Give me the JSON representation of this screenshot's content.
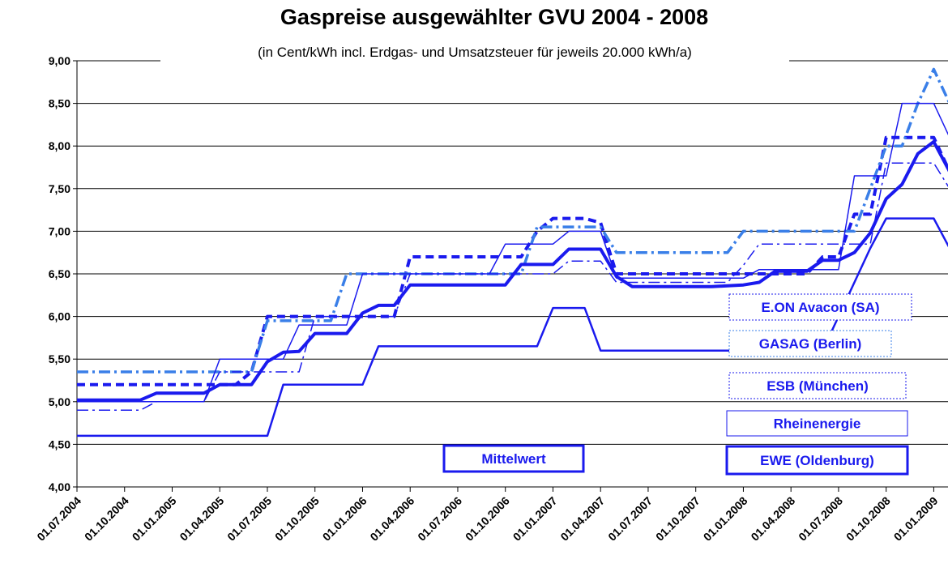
{
  "chart_data": {
    "type": "line",
    "title": "Gaspreise ausgewählter GVU 2004 - 2008",
    "subtitle": "(in Cent/kWh incl. Erdgas- und Umsatzsteuer für jeweils 20.000 kWh/a)",
    "categories": [
      "01.07.2004",
      null,
      null,
      "01.10.2004",
      null,
      null,
      "01.01.2005",
      null,
      null,
      "01.04.2005",
      null,
      null,
      "01.07.2005",
      null,
      null,
      "01.10.2005",
      null,
      null,
      "01.01.2006",
      null,
      null,
      "01.04.2006",
      null,
      null,
      "01.07.2006",
      null,
      null,
      "01.10.2006",
      null,
      null,
      "01.01.2007",
      null,
      null,
      "01.04.2007",
      null,
      null,
      "01.07.2007",
      null,
      null,
      "01.10.2007",
      null,
      null,
      "01.01.2008",
      null,
      null,
      "01.04.2008",
      null,
      null,
      "01.07.2008",
      null,
      null,
      "01.10.2008",
      null,
      null,
      "01.01.2009",
      null
    ],
    "series": [
      {
        "name": "E.ON Avacon (SA)",
        "color": "#1a1aee",
        "style": "dashed",
        "width": 4,
        "values": [
          5.2,
          5.2,
          5.2,
          5.2,
          5.2,
          5.2,
          5.2,
          5.2,
          5.2,
          5.2,
          5.2,
          5.35,
          6.0,
          6.0,
          6.0,
          6.0,
          6.0,
          6.0,
          6.0,
          6.0,
          6.0,
          6.7,
          6.7,
          6.7,
          6.7,
          6.7,
          6.7,
          6.7,
          6.7,
          7.0,
          7.15,
          7.15,
          7.15,
          7.1,
          6.5,
          6.5,
          6.5,
          6.5,
          6.5,
          6.5,
          6.5,
          6.5,
          6.5,
          6.5,
          6.5,
          6.5,
          6.5,
          6.7,
          6.7,
          7.2,
          7.2,
          8.1,
          8.1,
          8.1,
          8.1,
          7.7
        ]
      },
      {
        "name": "GASAG (Berlin)",
        "color": "#3a7fe8",
        "style": "dashdot",
        "width": 3.5,
        "values": [
          5.35,
          5.35,
          5.35,
          5.35,
          5.35,
          5.35,
          5.35,
          5.35,
          5.35,
          5.35,
          5.35,
          5.35,
          5.95,
          5.95,
          5.95,
          5.95,
          5.95,
          6.5,
          6.5,
          6.5,
          6.5,
          6.5,
          6.5,
          6.5,
          6.5,
          6.5,
          6.5,
          6.5,
          6.5,
          7.05,
          7.05,
          7.05,
          7.05,
          7.05,
          6.75,
          6.75,
          6.75,
          6.75,
          6.75,
          6.75,
          6.75,
          6.75,
          7.0,
          7.0,
          7.0,
          7.0,
          7.0,
          7.0,
          7.0,
          7.0,
          7.5,
          8.0,
          8.0,
          8.5,
          8.9,
          8.5
        ]
      },
      {
        "name": "ESB (München)",
        "color": "#1a1aee",
        "style": "dashdot",
        "width": 1.5,
        "values": [
          4.9,
          4.9,
          4.9,
          4.9,
          4.9,
          5.0,
          5.0,
          5.0,
          5.0,
          5.35,
          5.35,
          5.35,
          5.35,
          5.35,
          5.35,
          6.0,
          6.0,
          6.0,
          6.0,
          6.0,
          6.0,
          6.5,
          6.5,
          6.5,
          6.5,
          6.5,
          6.5,
          6.5,
          6.5,
          6.5,
          6.5,
          6.65,
          6.65,
          6.65,
          6.4,
          6.4,
          6.4,
          6.4,
          6.4,
          6.4,
          6.4,
          6.4,
          6.6,
          6.85,
          6.85,
          6.85,
          6.85,
          6.85,
          6.85,
          6.85,
          6.85,
          7.8,
          7.8,
          7.8,
          7.8,
          7.5
        ]
      },
      {
        "name": "Rheinenergie",
        "color": "#1a1aee",
        "style": "solid",
        "width": 1.5,
        "values": [
          5.0,
          5.0,
          5.0,
          5.0,
          5.0,
          5.0,
          5.0,
          5.0,
          5.0,
          5.5,
          5.5,
          5.5,
          5.5,
          5.5,
          5.9,
          5.9,
          5.9,
          5.9,
          6.5,
          6.5,
          6.5,
          6.5,
          6.5,
          6.5,
          6.5,
          6.5,
          6.5,
          6.85,
          6.85,
          6.85,
          6.85,
          7.0,
          7.0,
          7.0,
          6.45,
          6.45,
          6.45,
          6.45,
          6.45,
          6.45,
          6.45,
          6.45,
          6.45,
          6.55,
          6.55,
          6.55,
          6.55,
          6.55,
          6.55,
          7.65,
          7.65,
          7.65,
          8.5,
          8.5,
          8.5,
          8.1
        ]
      },
      {
        "name": "EWE (Oldenburg)",
        "color": "#1a1aee",
        "style": "solid",
        "width": 2.5,
        "values": [
          4.6,
          4.6,
          4.6,
          4.6,
          4.6,
          4.6,
          4.6,
          4.6,
          4.6,
          4.6,
          4.6,
          4.6,
          4.6,
          5.2,
          5.2,
          5.2,
          5.2,
          5.2,
          5.2,
          5.65,
          5.65,
          5.65,
          5.65,
          5.65,
          5.65,
          5.65,
          5.65,
          5.65,
          5.65,
          5.65,
          6.1,
          6.1,
          6.1,
          5.6,
          5.6,
          5.6,
          5.6,
          5.6,
          5.6,
          5.6,
          5.6,
          5.6,
          5.6,
          5.6,
          5.6,
          5.6,
          5.6,
          5.6,
          6.0,
          6.4,
          6.8,
          7.15,
          7.15,
          7.15,
          7.15,
          6.8
        ]
      },
      {
        "name": "Mittelwert",
        "color": "#1a1aee",
        "style": "solid",
        "width": 4,
        "values": [
          5.02,
          5.02,
          5.02,
          5.02,
          5.02,
          5.1,
          5.1,
          5.1,
          5.1,
          5.2,
          5.2,
          5.2,
          5.47,
          5.58,
          5.59,
          5.8,
          5.8,
          5.8,
          6.04,
          6.13,
          6.13,
          6.37,
          6.37,
          6.37,
          6.37,
          6.37,
          6.37,
          6.37,
          6.61,
          6.61,
          6.61,
          6.79,
          6.79,
          6.79,
          6.47,
          6.35,
          6.35,
          6.35,
          6.35,
          6.35,
          6.35,
          6.36,
          6.37,
          6.4,
          6.53,
          6.53,
          6.53,
          6.66,
          6.66,
          6.75,
          6.98,
          7.38,
          7.55,
          7.91,
          8.05,
          7.7
        ]
      }
    ],
    "ylim": [
      4,
      9
    ],
    "yticks": [
      {
        "value": 4,
        "label": "4,00"
      },
      {
        "value": 4.5,
        "label": "4,50"
      },
      {
        "value": 5,
        "label": "5,00"
      },
      {
        "value": 5.5,
        "label": "5,50"
      },
      {
        "value": 6,
        "label": "6,00"
      },
      {
        "value": 6.5,
        "label": "6,50"
      },
      {
        "value": 7,
        "label": "7,00"
      },
      {
        "value": 7.5,
        "label": "7,50"
      },
      {
        "value": 8,
        "label": "8,00"
      },
      {
        "value": 8.5,
        "label": "8,50"
      },
      {
        "value": 9,
        "label": "9,00"
      }
    ],
    "grid": true
  }
}
